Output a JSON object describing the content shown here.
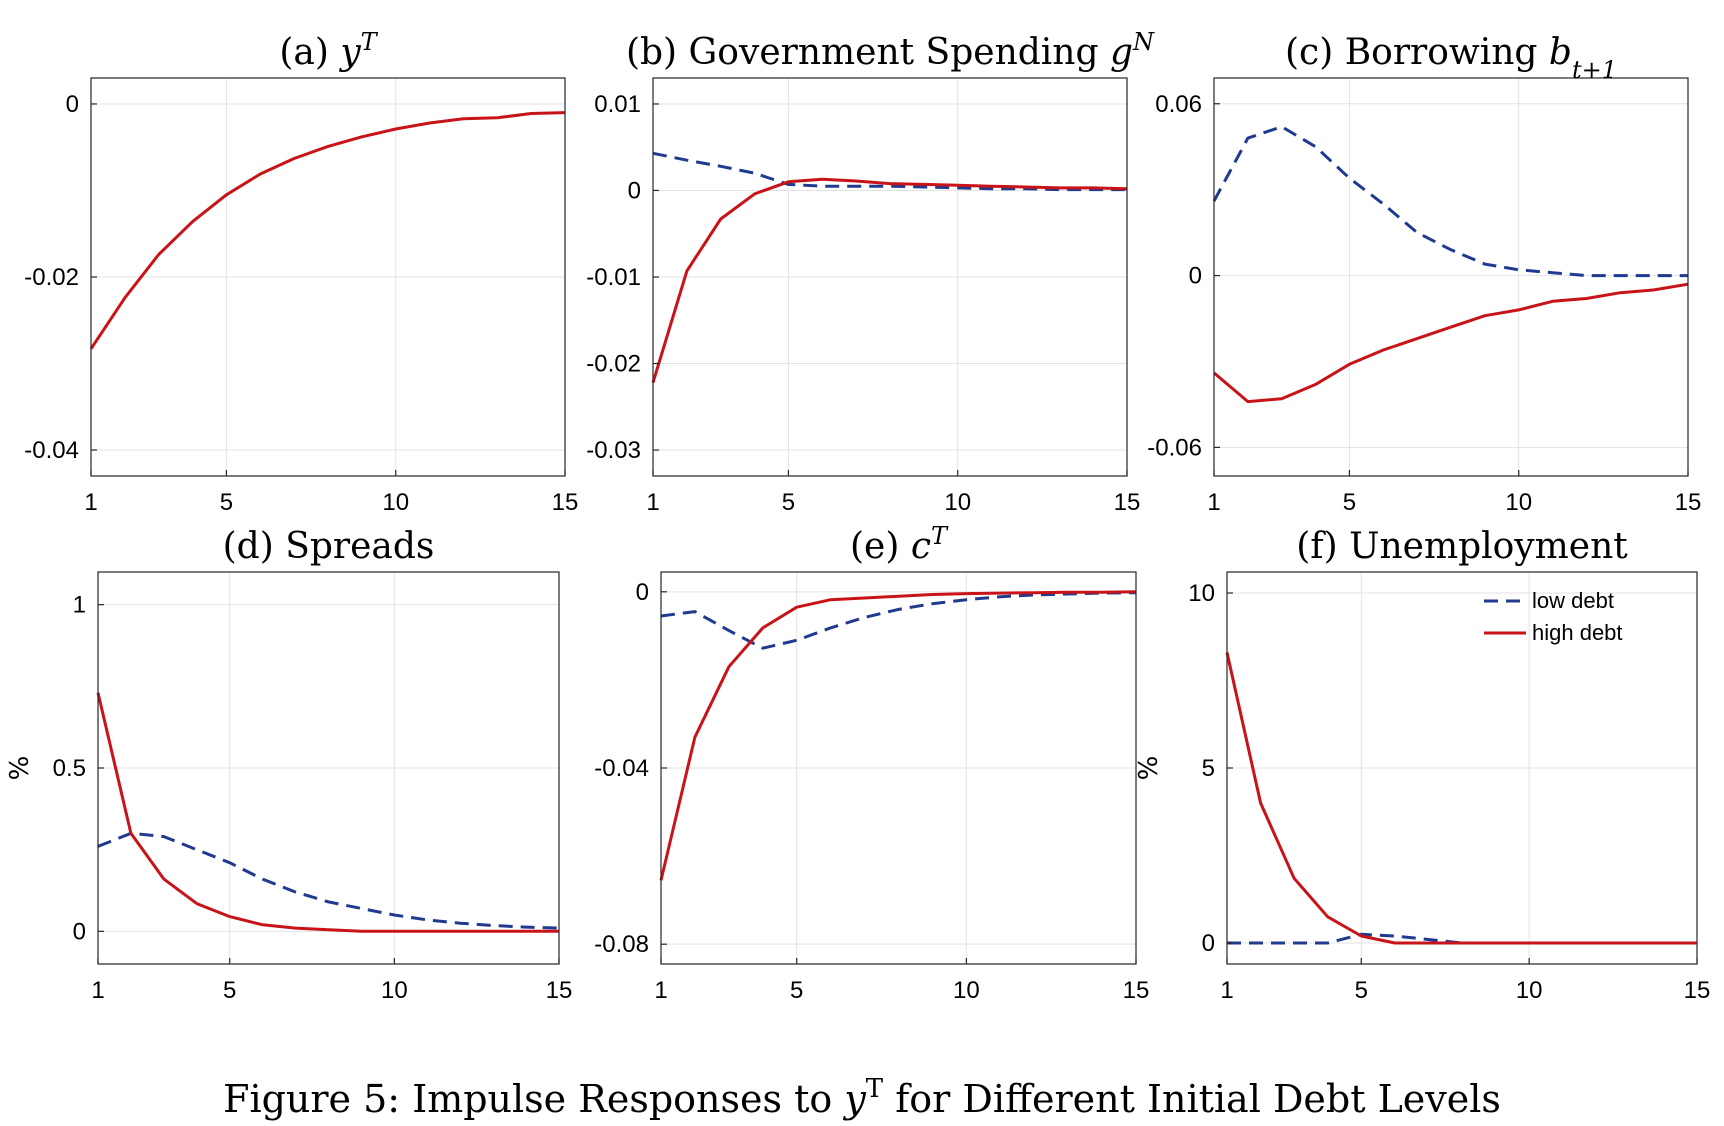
{
  "figure_caption": {
    "prefix": "Figure 5: Impulse Responses to ",
    "var": "y",
    "sup": "T",
    "suffix": " for Different Initial Debt Levels"
  },
  "legend": {
    "placement": "top-right of panel (f)",
    "entries": [
      {
        "label": "low debt",
        "color": "#1f3a8f",
        "style": "dashed"
      },
      {
        "label": "high debt",
        "color": "#c81418",
        "style": "solid"
      }
    ]
  },
  "chart_data": [
    {
      "type": "line",
      "title": {
        "prefix": "(a) ",
        "var": "y",
        "sup": "T",
        "sub": ""
      },
      "ylabel": "",
      "xlim": [
        1,
        15
      ],
      "ylim": [
        -0.043,
        0.003
      ],
      "xticks": [
        1,
        5,
        10,
        15
      ],
      "xtick_labels": [
        "1",
        "5",
        "10",
        "15"
      ],
      "yticks": [
        0,
        -0.02,
        -0.04
      ],
      "ytick_labels": [
        "0",
        "-0.02",
        "-0.04"
      ],
      "grid": true,
      "x": [
        1,
        2,
        3,
        4,
        5,
        6,
        7,
        8,
        9,
        10,
        11,
        12,
        13,
        14,
        15
      ],
      "series": [
        {
          "label": "",
          "color": "#c81418",
          "dashed": false,
          "values": [
            -0.0283,
            -0.0224,
            -0.0174,
            -0.0136,
            -0.0105,
            -0.0081,
            -0.0063,
            -0.0049,
            -0.0038,
            -0.0029,
            -0.0022,
            -0.0017,
            -0.0016,
            -0.0011,
            -0.001
          ]
        }
      ]
    },
    {
      "type": "line",
      "title": {
        "prefix": "(b) Government Spending ",
        "var": "g",
        "sup": "N",
        "sub": ""
      },
      "ylabel": "",
      "xlim": [
        1,
        15
      ],
      "ylim": [
        -0.033,
        0.013
      ],
      "xticks": [
        1,
        5,
        10,
        15
      ],
      "xtick_labels": [
        "1",
        "5",
        "10",
        "15"
      ],
      "yticks": [
        0.01,
        0,
        -0.01,
        -0.02,
        -0.03
      ],
      "ytick_labels": [
        "0.01",
        "0",
        "-0.01",
        "-0.02",
        "-0.03"
      ],
      "grid": true,
      "x": [
        1,
        2,
        3,
        4,
        5,
        6,
        7,
        8,
        9,
        10,
        11,
        12,
        13,
        14,
        15
      ],
      "series": [
        {
          "label": "low debt",
          "color": "#1f3a8f",
          "dashed": true,
          "values": [
            0.0043,
            0.0035,
            0.0028,
            0.002,
            0.0007,
            0.0005,
            0.0005,
            0.0005,
            0.0004,
            0.0003,
            0.0002,
            0.0002,
            0.0001,
            0.0001,
            0.0001
          ]
        },
        {
          "label": "high debt",
          "color": "#c81418",
          "dashed": false,
          "values": [
            -0.0222,
            -0.0093,
            -0.0033,
            -0.0004,
            0.001,
            0.0013,
            0.0011,
            0.0008,
            0.0007,
            0.0006,
            0.0005,
            0.0004,
            0.0003,
            0.0003,
            0.0002
          ]
        }
      ]
    },
    {
      "type": "line",
      "title": {
        "prefix": "(c) Borrowing ",
        "var": "b",
        "sup": "",
        "sub": "t+1"
      },
      "ylabel": "",
      "xlim": [
        1,
        15
      ],
      "ylim": [
        -0.07,
        0.069
      ],
      "xticks": [
        1,
        5,
        10,
        15
      ],
      "xtick_labels": [
        "1",
        "5",
        "10",
        "15"
      ],
      "yticks": [
        0.06,
        0,
        -0.06
      ],
      "ytick_labels": [
        "0.06",
        "0",
        "-0.06"
      ],
      "grid": true,
      "x": [
        1,
        2,
        3,
        4,
        5,
        6,
        7,
        8,
        9,
        10,
        11,
        12,
        13,
        14,
        15
      ],
      "series": [
        {
          "label": "low debt",
          "color": "#1f3a8f",
          "dashed": true,
          "values": [
            0.026,
            0.048,
            0.052,
            0.045,
            0.034,
            0.025,
            0.015,
            0.009,
            0.004,
            0.002,
            0.001,
            0.0,
            0.0,
            0.0,
            0.0
          ]
        },
        {
          "label": "high debt",
          "color": "#c81418",
          "dashed": false,
          "values": [
            -0.034,
            -0.044,
            -0.043,
            -0.038,
            -0.031,
            -0.026,
            -0.022,
            -0.018,
            -0.014,
            -0.012,
            -0.009,
            -0.008,
            -0.006,
            -0.005,
            -0.003
          ]
        }
      ]
    },
    {
      "type": "line",
      "title": {
        "prefix": "(d) Spreads",
        "var": "",
        "sup": "",
        "sub": ""
      },
      "ylabel": "%",
      "xlim": [
        1,
        15
      ],
      "ylim": [
        -0.1,
        1.1
      ],
      "xticks": [
        1,
        5,
        10,
        15
      ],
      "xtick_labels": [
        "1",
        "5",
        "10",
        "15"
      ],
      "yticks": [
        1,
        0.5,
        0
      ],
      "ytick_labels": [
        "1",
        "0.5",
        "0"
      ],
      "grid": true,
      "x": [
        1,
        2,
        3,
        4,
        5,
        6,
        7,
        8,
        9,
        10,
        11,
        12,
        13,
        14,
        15
      ],
      "series": [
        {
          "label": "low debt",
          "color": "#1f3a8f",
          "dashed": true,
          "values": [
            0.26,
            0.3,
            0.29,
            0.25,
            0.21,
            0.16,
            0.12,
            0.09,
            0.07,
            0.05,
            0.035,
            0.025,
            0.018,
            0.013,
            0.01
          ]
        },
        {
          "label": "high debt",
          "color": "#c81418",
          "dashed": false,
          "values": [
            0.73,
            0.3,
            0.16,
            0.085,
            0.045,
            0.02,
            0.01,
            0.005,
            0.0,
            0.0,
            0.0,
            0.0,
            0.0,
            0.0,
            0.0
          ]
        }
      ]
    },
    {
      "type": "line",
      "title": {
        "prefix": "(e) ",
        "var": "c",
        "sup": "T",
        "sub": ""
      },
      "ylabel": "",
      "xlim": [
        1,
        15
      ],
      "ylim": [
        -0.0845,
        0.0045
      ],
      "xticks": [
        1,
        5,
        10,
        15
      ],
      "xtick_labels": [
        "1",
        "5",
        "10",
        "15"
      ],
      "yticks": [
        0,
        -0.04,
        -0.08
      ],
      "ytick_labels": [
        "0",
        "-0.04",
        "-0.08"
      ],
      "grid": true,
      "x": [
        1,
        2,
        3,
        4,
        5,
        6,
        7,
        8,
        9,
        10,
        11,
        12,
        13,
        14,
        15
      ],
      "series": [
        {
          "label": "low debt",
          "color": "#1f3a8f",
          "dashed": true,
          "values": [
            -0.0055,
            -0.0045,
            -0.0088,
            -0.0128,
            -0.011,
            -0.0082,
            -0.0058,
            -0.004,
            -0.0027,
            -0.0018,
            -0.0011,
            -0.0007,
            -0.0005,
            -0.0003,
            -0.0002
          ]
        },
        {
          "label": "high debt",
          "color": "#c81418",
          "dashed": false,
          "values": [
            -0.0655,
            -0.033,
            -0.017,
            -0.0082,
            -0.0035,
            -0.0018,
            -0.0014,
            -0.001,
            -0.0006,
            -0.0004,
            -0.0003,
            -0.0002,
            -0.0001,
            -0.0001,
            0.0
          ]
        }
      ]
    },
    {
      "type": "line",
      "title": {
        "prefix": "(f) Unemployment",
        "var": "",
        "sup": "",
        "sub": ""
      },
      "ylabel": "%",
      "xlim": [
        1,
        15
      ],
      "ylim": [
        -0.6,
        10.6
      ],
      "xticks": [
        1,
        5,
        10,
        15
      ],
      "xtick_labels": [
        "1",
        "5",
        "10",
        "15"
      ],
      "yticks": [
        10,
        5,
        0
      ],
      "ytick_labels": [
        "10",
        "5",
        "0"
      ],
      "grid": true,
      "x": [
        1,
        2,
        3,
        4,
        5,
        6,
        7,
        8,
        9,
        10,
        11,
        12,
        13,
        14,
        15
      ],
      "series": [
        {
          "label": "low debt",
          "color": "#1f3a8f",
          "dashed": true,
          "values": [
            0.0,
            0.0,
            0.0,
            0.0,
            0.25,
            0.2,
            0.1,
            0.0,
            0.0,
            0.0,
            0.0,
            0.0,
            0.0,
            0.0,
            0.0
          ]
        },
        {
          "label": "high debt",
          "color": "#c81418",
          "dashed": false,
          "values": [
            8.3,
            4.0,
            1.85,
            0.75,
            0.2,
            0.0,
            0.0,
            0.0,
            0.0,
            0.0,
            0.0,
            0.0,
            0.0,
            0.0,
            0.0
          ]
        }
      ]
    }
  ]
}
